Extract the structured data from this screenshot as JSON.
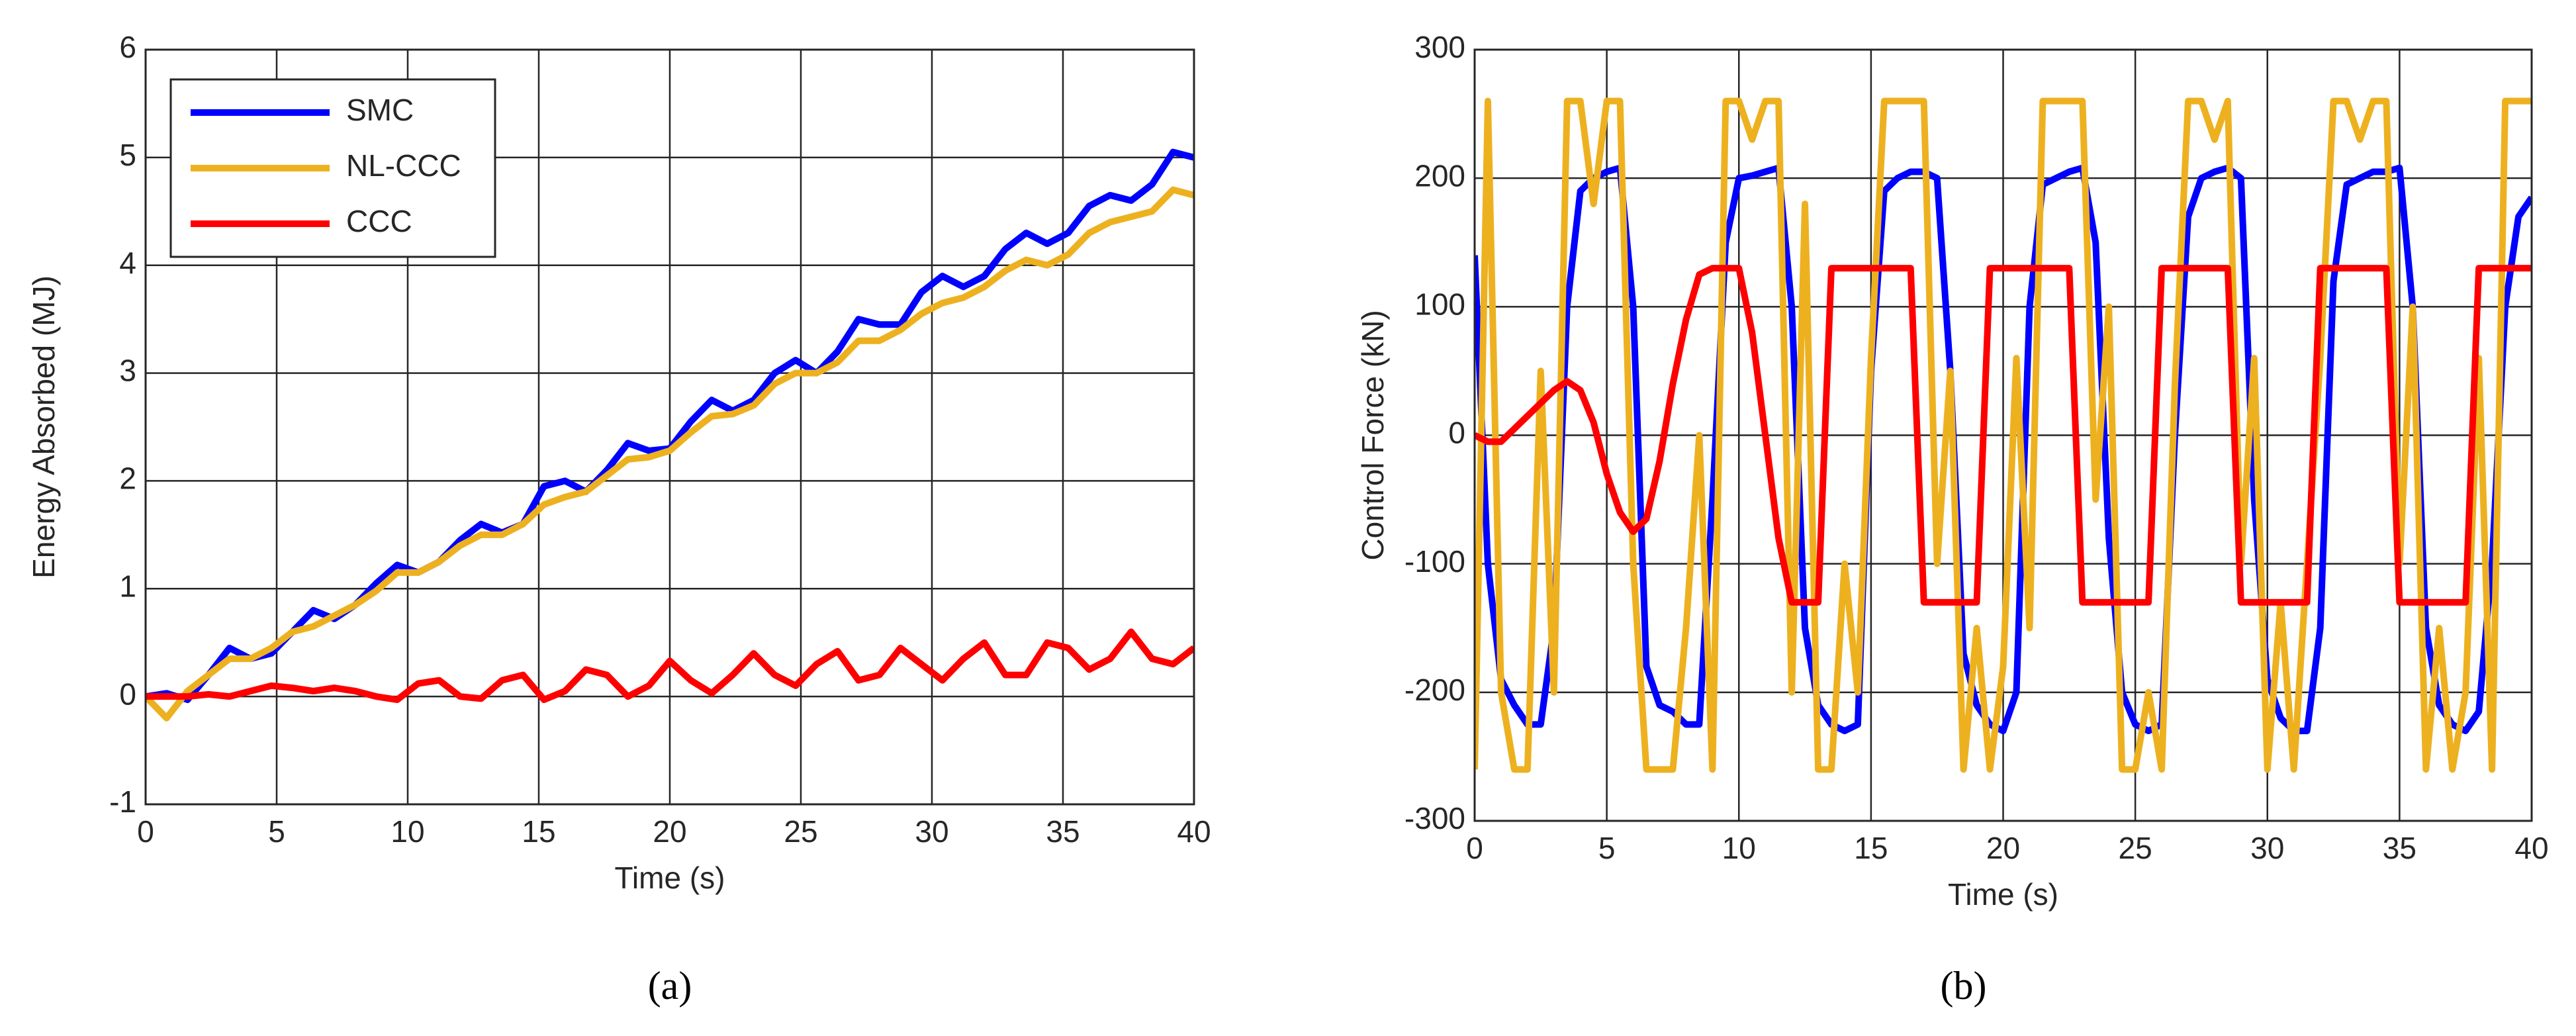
{
  "chart_data": [
    {
      "type": "line",
      "caption": "(a)",
      "xlabel": "Time (s)",
      "ylabel": "Energy Absorbed (MJ)",
      "xlim": [
        0,
        40
      ],
      "ylim": [
        -1,
        6
      ],
      "xticks": [
        0,
        5,
        10,
        15,
        20,
        25,
        30,
        35,
        40
      ],
      "yticks": [
        -1,
        0,
        1,
        2,
        3,
        4,
        5,
        6
      ],
      "grid": true,
      "legend": "upper left",
      "x": [
        0,
        0.8,
        1.6,
        2.4,
        3.2,
        4,
        4.8,
        5.6,
        6.4,
        7.2,
        8,
        8.8,
        9.6,
        10.4,
        11.2,
        12,
        12.8,
        13.6,
        14.4,
        15.2,
        16,
        16.8,
        17.6,
        18.4,
        19.2,
        20,
        20.8,
        21.6,
        22.4,
        23.2,
        24,
        24.8,
        25.6,
        26.4,
        27.2,
        28,
        28.8,
        29.6,
        30.4,
        31.2,
        32,
        32.8,
        33.6,
        34.4,
        35.2,
        36,
        36.8,
        37.6,
        38.4,
        39.2,
        40
      ],
      "series": [
        {
          "name": "SMC",
          "color": "#0000ff",
          "values": [
            0,
            0.03,
            -0.03,
            0.2,
            0.45,
            0.35,
            0.4,
            0.6,
            0.8,
            0.72,
            0.85,
            1.05,
            1.22,
            1.15,
            1.25,
            1.45,
            1.6,
            1.52,
            1.6,
            1.95,
            2.0,
            1.9,
            2.1,
            2.35,
            2.28,
            2.3,
            2.55,
            2.75,
            2.65,
            2.75,
            3.0,
            3.12,
            3.0,
            3.2,
            3.5,
            3.45,
            3.45,
            3.75,
            3.9,
            3.8,
            3.9,
            4.15,
            4.3,
            4.2,
            4.3,
            4.55,
            4.65,
            4.6,
            4.75,
            5.05,
            5.0
          ]
        },
        {
          "name": "NL-CCC",
          "color": "#edb120",
          "values": [
            0,
            -0.2,
            0.05,
            0.2,
            0.35,
            0.35,
            0.45,
            0.6,
            0.65,
            0.75,
            0.85,
            0.98,
            1.15,
            1.15,
            1.25,
            1.4,
            1.5,
            1.5,
            1.6,
            1.78,
            1.85,
            1.9,
            2.05,
            2.2,
            2.22,
            2.28,
            2.45,
            2.6,
            2.62,
            2.7,
            2.9,
            3.0,
            3.0,
            3.1,
            3.3,
            3.3,
            3.4,
            3.55,
            3.65,
            3.7,
            3.8,
            3.95,
            4.05,
            4.0,
            4.1,
            4.3,
            4.4,
            4.45,
            4.5,
            4.7,
            4.65
          ]
        },
        {
          "name": "CCC",
          "color": "#ff0000",
          "values": [
            0,
            0,
            0,
            0.02,
            0,
            0.05,
            0.1,
            0.08,
            0.05,
            0.08,
            0.05,
            0,
            -0.03,
            0.12,
            0.15,
            0,
            -0.02,
            0.15,
            0.2,
            -0.03,
            0.05,
            0.25,
            0.2,
            0,
            0.1,
            0.33,
            0.15,
            0.03,
            0.2,
            0.4,
            0.2,
            0.1,
            0.3,
            0.42,
            0.15,
            0.2,
            0.45,
            0.3,
            0.15,
            0.35,
            0.5,
            0.2,
            0.2,
            0.5,
            0.45,
            0.25,
            0.35,
            0.6,
            0.35,
            0.3,
            0.45
          ]
        }
      ]
    },
    {
      "type": "line",
      "caption": "(b)",
      "xlabel": "Time (s)",
      "ylabel": "Control Force (kN)",
      "xlim": [
        0,
        40
      ],
      "ylim": [
        -300,
        300
      ],
      "xticks": [
        0,
        5,
        10,
        15,
        20,
        25,
        30,
        35,
        40
      ],
      "yticks": [
        -300,
        -200,
        -100,
        0,
        100,
        200,
        300
      ],
      "grid": true,
      "x": [
        0,
        0.5,
        1,
        1.5,
        2,
        2.5,
        3,
        3.5,
        4,
        4.5,
        5,
        5.5,
        6,
        6.5,
        7,
        7.5,
        8,
        8.5,
        9,
        9.5,
        10,
        10.5,
        11,
        11.5,
        12,
        12.5,
        13,
        13.5,
        14,
        14.5,
        15,
        15.5,
        16,
        16.5,
        17,
        17.5,
        18,
        18.5,
        19,
        19.5,
        20,
        20.5,
        21,
        21.5,
        22,
        22.5,
        23,
        23.5,
        24,
        24.5,
        25,
        25.5,
        26,
        26.5,
        27,
        27.5,
        28,
        28.5,
        29,
        29.5,
        30,
        30.5,
        31,
        31.5,
        32,
        32.5,
        33,
        33.5,
        34,
        34.5,
        35,
        35.5,
        36,
        36.5,
        37,
        37.5,
        38,
        38.5,
        39,
        39.5,
        40
      ],
      "series": [
        {
          "color": "#0000ff",
          "values": [
            140,
            -100,
            -190,
            -210,
            -225,
            -225,
            -150,
            100,
            190,
            200,
            205,
            208,
            100,
            -180,
            -210,
            -215,
            -225,
            -225,
            -50,
            150,
            200,
            202,
            205,
            208,
            100,
            -150,
            -210,
            -225,
            -230,
            -225,
            50,
            190,
            200,
            205,
            205,
            200,
            50,
            -170,
            -210,
            -225,
            -230,
            -200,
            100,
            195,
            200,
            205,
            208,
            150,
            -80,
            -200,
            -225,
            -230,
            -225,
            0,
            170,
            200,
            205,
            208,
            200,
            -50,
            -190,
            -220,
            -230,
            -230,
            -150,
            120,
            195,
            200,
            205,
            205,
            208,
            100,
            -150,
            -210,
            -225,
            -230,
            -215,
            -100,
            100,
            170,
            185
          ]
        },
        {
          "color": "#edb120",
          "values": [
            -260,
            260,
            -200,
            -260,
            -260,
            50,
            -200,
            260,
            260,
            180,
            260,
            260,
            -100,
            -260,
            -260,
            -260,
            -150,
            0,
            -260,
            260,
            260,
            230,
            260,
            260,
            -200,
            180,
            -260,
            -260,
            -100,
            -200,
            60,
            260,
            260,
            260,
            260,
            -100,
            50,
            -260,
            -150,
            -260,
            -180,
            60,
            -150,
            260,
            260,
            260,
            260,
            -50,
            100,
            -260,
            -260,
            -200,
            -260,
            40,
            260,
            260,
            230,
            260,
            -100,
            60,
            -260,
            -130,
            -260,
            -100,
            60,
            260,
            260,
            230,
            260,
            260,
            -100,
            100,
            -260,
            -150,
            -260,
            -200,
            60,
            -260,
            260,
            260,
            260
          ]
        },
        {
          "color": "#ff0000",
          "values": [
            0,
            -5,
            -5,
            5,
            15,
            25,
            35,
            42,
            35,
            10,
            -30,
            -60,
            -75,
            -65,
            -20,
            40,
            90,
            125,
            130,
            130,
            130,
            80,
            0,
            -80,
            -130,
            -130,
            -130,
            130,
            130,
            130,
            130,
            130,
            130,
            130,
            -130,
            -130,
            -130,
            -130,
            -130,
            130,
            130,
            130,
            130,
            130,
            130,
            130,
            -130,
            -130,
            -130,
            -130,
            -130,
            -130,
            130,
            130,
            130,
            130,
            130,
            130,
            -130,
            -130,
            -130,
            -130,
            -130,
            -130,
            130,
            130,
            130,
            130,
            130,
            130,
            -130,
            -130,
            -130,
            -130,
            -130,
            -130,
            130,
            130,
            130,
            130,
            130
          ]
        }
      ]
    }
  ]
}
